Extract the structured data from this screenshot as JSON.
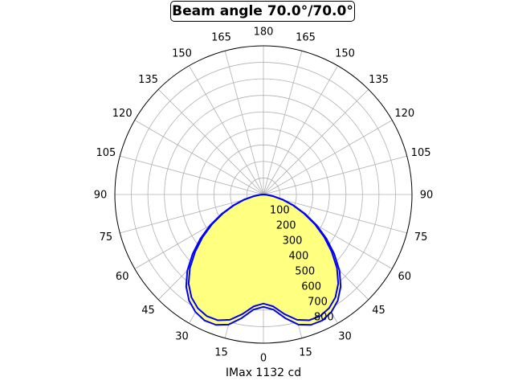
{
  "chart_data": {
    "type": "polar-line",
    "title": "Beam angle 70.0°/70.0°",
    "xlabel": "IMax 1132 cd",
    "angle_tick_labels": [
      "0",
      "15",
      "30",
      "45",
      "60",
      "75",
      "90",
      "105",
      "120",
      "135",
      "150",
      "165",
      "180"
    ],
    "radial_tick_labels": [
      "100",
      "200",
      "300",
      "400",
      "500",
      "600",
      "700",
      "800"
    ],
    "rlim": [
      0,
      800
    ],
    "grid": true,
    "fill_color": "#ffff80",
    "line_color": "#0000ff",
    "series": [
      {
        "angles_deg": [
          0,
          5,
          10,
          15,
          20,
          25,
          30,
          35,
          40,
          45,
          50,
          55,
          60,
          65,
          70,
          75,
          80,
          85,
          90
        ],
        "values": [
          660,
          680,
          735,
          785,
          810,
          812,
          795,
          760,
          705,
          630,
          540,
          450,
          360,
          270,
          190,
          120,
          60,
          20,
          0
        ]
      },
      {
        "angles_deg": [
          0,
          5,
          10,
          15,
          20,
          25,
          30,
          35,
          40,
          45,
          50,
          55,
          60,
          65,
          70,
          75,
          80,
          85,
          90
        ],
        "values": [
          680,
          700,
          760,
          815,
          840,
          842,
          822,
          785,
          728,
          652,
          560,
          466,
          372,
          280,
          196,
          124,
          62,
          21,
          0
        ]
      }
    ]
  }
}
